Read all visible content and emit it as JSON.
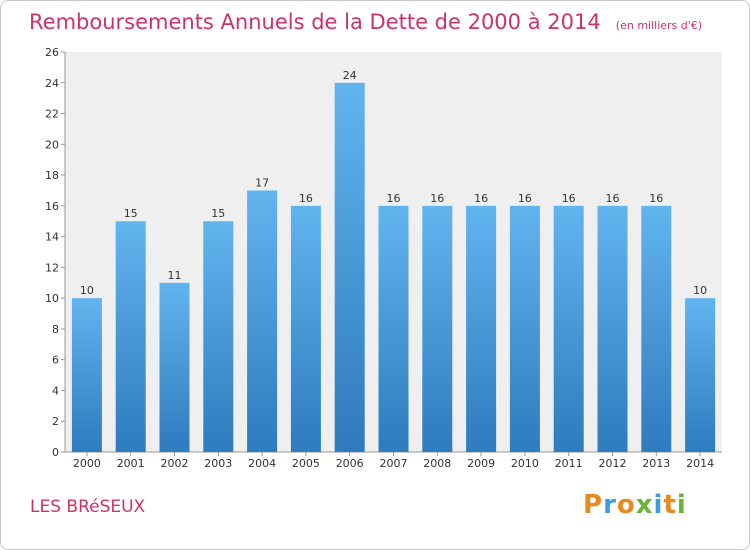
{
  "header": {
    "title": "Remboursements Annuels de la Dette de 2000 à 2014",
    "subtitle": "(en milliers d'€)"
  },
  "footer": {
    "place": "LES BRéSEUX",
    "logo_text": "Proxiti"
  },
  "colors": {
    "title": "#cc3366",
    "bar_top": "#62b4ee",
    "bar_bottom": "#2e7bbd",
    "plot_background": "#efefef",
    "logo": [
      "#e8891b",
      "#3a9de0",
      "#e8891b",
      "#69b43a",
      "#3a9de0",
      "#e8891b",
      "#69b43a"
    ]
  },
  "chart_data": {
    "type": "bar",
    "title": "Remboursements Annuels de la Dette de 2000 à 2014",
    "subtitle": "(en milliers d'€)",
    "categories": [
      "2000",
      "2001",
      "2002",
      "2003",
      "2004",
      "2005",
      "2006",
      "2007",
      "2008",
      "2009",
      "2010",
      "2011",
      "2012",
      "2013",
      "2014"
    ],
    "values": [
      10,
      15,
      11,
      15,
      17,
      16,
      24,
      16,
      16,
      16,
      16,
      16,
      16,
      16,
      10
    ],
    "ylim": [
      0,
      26
    ],
    "yticks": [
      0,
      2,
      4,
      6,
      8,
      10,
      12,
      14,
      16,
      18,
      20,
      22,
      24,
      26
    ],
    "grid": false,
    "data_labels": true
  }
}
